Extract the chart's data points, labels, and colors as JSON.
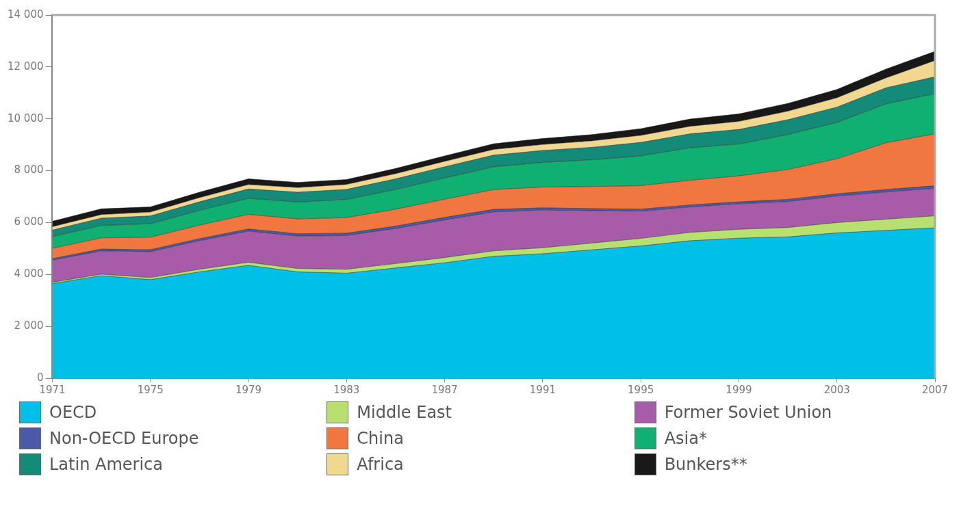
{
  "chart_data": {
    "type": "area",
    "stacked": true,
    "x": [
      1971,
      1973,
      1975,
      1977,
      1979,
      1981,
      1983,
      1985,
      1987,
      1989,
      1991,
      1993,
      1995,
      1997,
      1999,
      2001,
      2003,
      2005,
      2007
    ],
    "xlim": [
      1971,
      2007
    ],
    "xticks": [
      1971,
      1975,
      1979,
      1983,
      1987,
      1991,
      1995,
      1999,
      2003,
      2007
    ],
    "ylim": [
      0,
      14000
    ],
    "yticks": [
      {
        "value": 0,
        "label": "0"
      },
      {
        "value": 2000,
        "label": "2 000"
      },
      {
        "value": 4000,
        "label": "4 000"
      },
      {
        "value": 6000,
        "label": "6 000"
      },
      {
        "value": 8000,
        "label": "8 000"
      },
      {
        "value": 10000,
        "label": "10 000"
      },
      {
        "value": 12000,
        "label": "12 000"
      },
      {
        "value": 14000,
        "label": "14 000"
      }
    ],
    "grid": false,
    "legend": "bottom",
    "series": [
      {
        "name": "OECD",
        "color": "#00c0e8",
        "values": [
          3650,
          3950,
          3800,
          4100,
          4350,
          4100,
          4050,
          4250,
          4450,
          4700,
          4800,
          4950,
          5100,
          5300,
          5400,
          5450,
          5600,
          5700,
          5800
        ]
      },
      {
        "name": "Middle East",
        "color": "#b8e070",
        "values": [
          50,
          60,
          80,
          100,
          120,
          130,
          150,
          170,
          200,
          210,
          230,
          260,
          290,
          320,
          340,
          360,
          400,
          430,
          460
        ]
      },
      {
        "name": "Former Soviet Union",
        "color": "#a65ca8",
        "values": [
          850,
          900,
          1000,
          1100,
          1200,
          1250,
          1300,
          1350,
          1450,
          1500,
          1450,
          1250,
          1050,
          980,
          980,
          1000,
          1020,
          1050,
          1060
        ]
      },
      {
        "name": "Non-OECD Europe",
        "color": "#4a5aa8",
        "values": [
          60,
          70,
          75,
          80,
          85,
          90,
          90,
          95,
          100,
          100,
          90,
          80,
          80,
          80,
          80,
          85,
          90,
          95,
          100
        ]
      },
      {
        "name": "China",
        "color": "#f07840",
        "values": [
          400,
          430,
          480,
          520,
          560,
          570,
          600,
          650,
          700,
          760,
          800,
          850,
          900,
          950,
          1000,
          1150,
          1350,
          1800,
          2000
        ]
      },
      {
        "name": "Asia*",
        "color": "#10b070",
        "values": [
          450,
          480,
          520,
          570,
          620,
          650,
          700,
          760,
          820,
          880,
          950,
          1030,
          1150,
          1250,
          1230,
          1350,
          1400,
          1500,
          1550
        ]
      },
      {
        "name": "Latin America",
        "color": "#148a78",
        "values": [
          250,
          280,
          300,
          330,
          360,
          380,
          390,
          410,
          430,
          450,
          460,
          480,
          520,
          540,
          560,
          570,
          590,
          620,
          650
        ]
      },
      {
        "name": "Africa",
        "color": "#f0d890",
        "values": [
          130,
          140,
          150,
          160,
          170,
          180,
          190,
          200,
          210,
          220,
          230,
          250,
          270,
          290,
          310,
          330,
          360,
          380,
          630
        ]
      },
      {
        "name": "Bunkers**",
        "color": "#181818",
        "values": [
          210,
          220,
          200,
          210,
          220,
          200,
          190,
          200,
          210,
          220,
          230,
          240,
          260,
          280,
          290,
          300,
          320,
          340,
          350
        ]
      }
    ]
  }
}
